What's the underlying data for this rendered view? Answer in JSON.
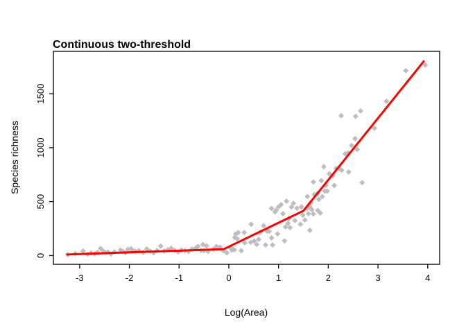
{
  "chart_data": {
    "type": "scatter",
    "title": "Continuous two-threshold",
    "xlabel": "Log(Area)",
    "ylabel": "Species richness",
    "xlim": [
      -3.528,
      4.24
    ],
    "ylim": [
      -81,
      1893
    ],
    "x_ticks": [
      -3,
      -2,
      -1,
      0,
      1,
      2,
      3,
      4
    ],
    "y_ticks": [
      0,
      500,
      1000,
      1500
    ],
    "grid": false,
    "legend": "none",
    "marker": {
      "shape": "diamond",
      "color": "#bebebe",
      "size": 4
    },
    "fit_line": {
      "name": "continuous-two-threshold-fit",
      "color": "#ff0000",
      "width": 3,
      "breakpoints_x": [
        -3.25,
        -0.1,
        1.5,
        3.92
      ],
      "breakpoints_y": [
        10,
        60,
        415,
        1800
      ]
    },
    "points": [
      [
        -3.24,
        10
      ],
      [
        -3.09,
        18
      ],
      [
        -2.93,
        42
      ],
      [
        -2.84,
        12
      ],
      [
        -2.77,
        25
      ],
      [
        -2.7,
        18
      ],
      [
        -2.64,
        30
      ],
      [
        -2.58,
        66
      ],
      [
        -2.52,
        40
      ],
      [
        -2.48,
        28
      ],
      [
        -2.43,
        33
      ],
      [
        -2.37,
        15
      ],
      [
        -2.3,
        35
      ],
      [
        -2.18,
        52
      ],
      [
        -2.13,
        38
      ],
      [
        -2.08,
        25
      ],
      [
        -2.03,
        58
      ],
      [
        -1.97,
        63
      ],
      [
        -1.93,
        48
      ],
      [
        -1.88,
        40
      ],
      [
        -1.81,
        45
      ],
      [
        -1.72,
        30
      ],
      [
        -1.65,
        62
      ],
      [
        -1.58,
        40
      ],
      [
        -1.51,
        25
      ],
      [
        -1.44,
        48
      ],
      [
        -1.37,
        88
      ],
      [
        -1.3,
        42
      ],
      [
        -1.23,
        55
      ],
      [
        -1.16,
        68
      ],
      [
        -1.09,
        48
      ],
      [
        -1.02,
        35
      ],
      [
        -0.95,
        52
      ],
      [
        -0.88,
        45
      ],
      [
        -0.81,
        38
      ],
      [
        -0.74,
        60
      ],
      [
        -0.66,
        72
      ],
      [
        -0.62,
        85
      ],
      [
        -0.56,
        48
      ],
      [
        -0.52,
        103
      ],
      [
        -0.5,
        45
      ],
      [
        -0.45,
        90
      ],
      [
        -0.42,
        39
      ],
      [
        -0.31,
        58
      ],
      [
        -0.25,
        84
      ],
      [
        -0.18,
        77
      ],
      [
        -0.11,
        45
      ],
      [
        -0.04,
        26
      ],
      [
        0.04,
        71
      ],
      [
        0.06,
        51
      ],
      [
        0.11,
        53
      ],
      [
        0.12,
        169
      ],
      [
        0.14,
        201
      ],
      [
        0.17,
        155
      ],
      [
        0.19,
        213
      ],
      [
        0.25,
        45
      ],
      [
        0.31,
        214
      ],
      [
        0.32,
        118
      ],
      [
        0.44,
        122
      ],
      [
        0.45,
        290
      ],
      [
        0.51,
        135
      ],
      [
        0.56,
        103
      ],
      [
        0.6,
        150
      ],
      [
        0.63,
        214
      ],
      [
        0.7,
        277
      ],
      [
        0.74,
        98
      ],
      [
        0.77,
        227
      ],
      [
        0.81,
        225
      ],
      [
        0.86,
        437
      ],
      [
        0.86,
        163
      ],
      [
        0.88,
        98
      ],
      [
        0.93,
        405
      ],
      [
        0.95,
        420
      ],
      [
        0.98,
        201
      ],
      [
        1.0,
        452
      ],
      [
        1.05,
        472
      ],
      [
        1.09,
        388
      ],
      [
        1.12,
        137
      ],
      [
        1.14,
        266
      ],
      [
        1.16,
        504
      ],
      [
        1.19,
        298
      ],
      [
        1.21,
        343
      ],
      [
        1.23,
        259
      ],
      [
        1.26,
        450
      ],
      [
        1.3,
        485
      ],
      [
        1.33,
        324
      ],
      [
        1.37,
        439
      ],
      [
        1.44,
        290
      ],
      [
        1.46,
        452
      ],
      [
        1.49,
        375
      ],
      [
        1.53,
        330
      ],
      [
        1.58,
        439
      ],
      [
        1.58,
        547
      ],
      [
        1.6,
        388
      ],
      [
        1.63,
        457
      ],
      [
        1.63,
        234
      ],
      [
        1.65,
        491
      ],
      [
        1.67,
        425
      ],
      [
        1.7,
        682
      ],
      [
        1.7,
        386
      ],
      [
        1.72,
        566
      ],
      [
        1.79,
        579
      ],
      [
        1.79,
        418
      ],
      [
        1.81,
        521
      ],
      [
        1.84,
        395
      ],
      [
        1.86,
        695
      ],
      [
        1.88,
        547
      ],
      [
        1.91,
        824
      ],
      [
        1.93,
        598
      ],
      [
        1.95,
        650
      ],
      [
        1.98,
        598
      ],
      [
        2.02,
        759
      ],
      [
        2.09,
        740
      ],
      [
        2.12,
        650
      ],
      [
        2.16,
        808
      ],
      [
        2.23,
        804
      ],
      [
        2.26,
        1296
      ],
      [
        2.27,
        791
      ],
      [
        2.34,
        943
      ],
      [
        2.4,
        952
      ],
      [
        2.41,
        775
      ],
      [
        2.47,
        1020
      ],
      [
        2.54,
        1084
      ],
      [
        2.55,
        1290
      ],
      [
        2.58,
        984
      ],
      [
        2.65,
        1341
      ],
      [
        2.68,
        676
      ],
      [
        2.93,
        1181
      ],
      [
        3.17,
        1430
      ],
      [
        3.56,
        1714
      ],
      [
        3.95,
        1766
      ]
    ]
  }
}
